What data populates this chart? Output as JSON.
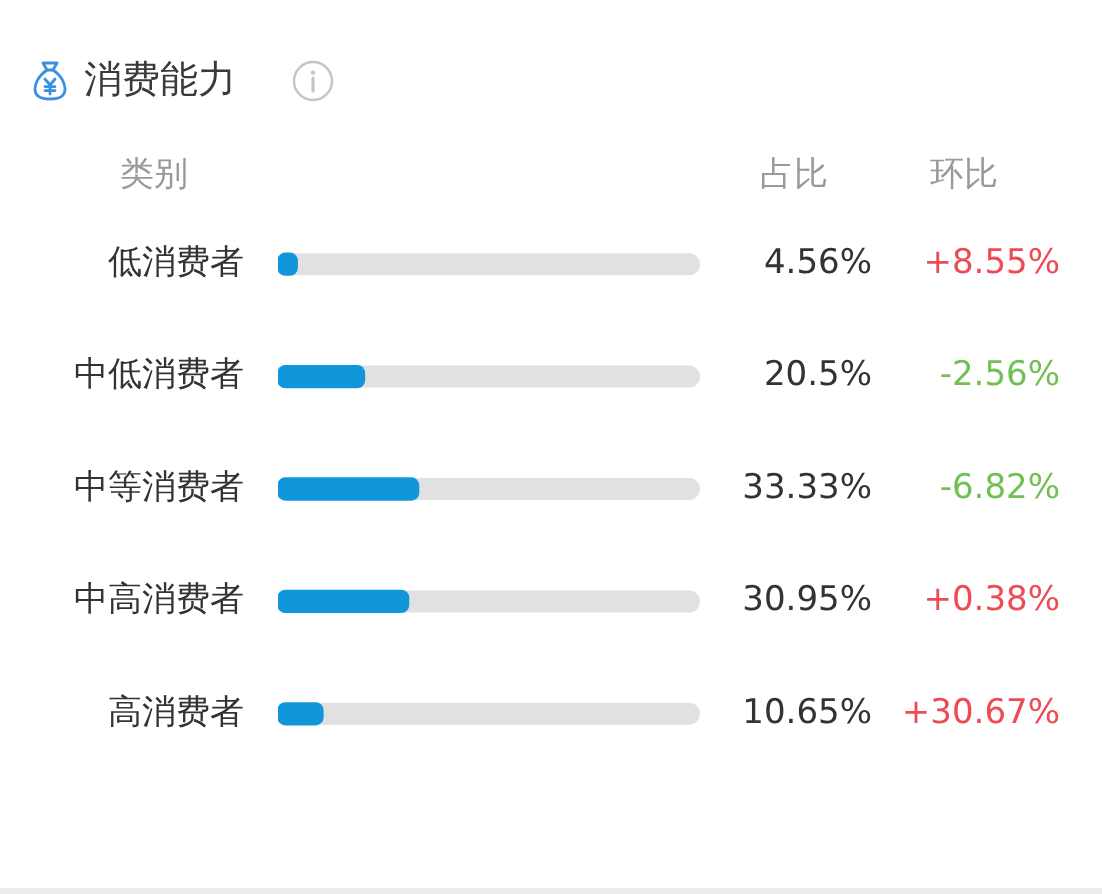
{
  "chart_data": {
    "type": "bar",
    "orientation": "horizontal",
    "title": "消费能力",
    "ylabel": "类别",
    "categories": [
      "低消费者",
      "中低消费者",
      "中等消费者",
      "中高消费者",
      "高消费者"
    ],
    "values": [
      4.56,
      20.5,
      33.33,
      30.95,
      10.65
    ],
    "value_labels": [
      "4.56%",
      "20.5%",
      "33.33%",
      "30.95%",
      "10.65%"
    ],
    "color": "#1296db",
    "xlim": [
      0,
      100
    ],
    "tick_labels": "y",
    "annotations": [
      "占比",
      "环比",
      "+8.55%",
      "-2.56%",
      "-6.82%",
      "+0.38%",
      "+30.67%"
    ]
  }
}
